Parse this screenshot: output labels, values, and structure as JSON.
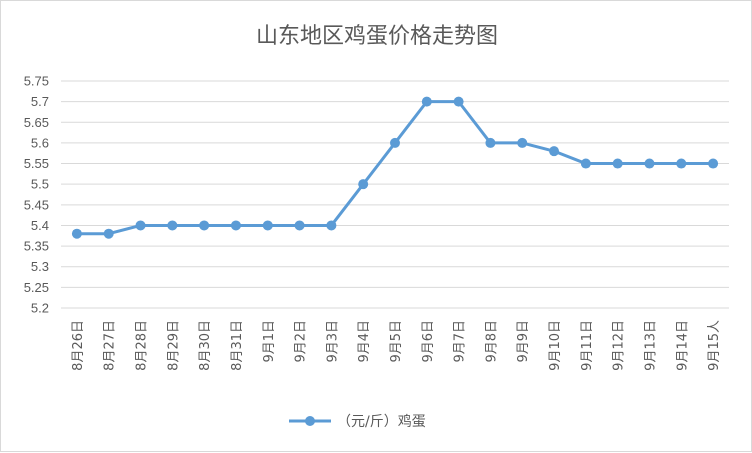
{
  "chart_data": {
    "type": "line",
    "title": "山东地区鸡蛋价格走势图",
    "categories": [
      "8月26日",
      "8月27日",
      "8月28日",
      "8月29日",
      "8月30日",
      "8月31日",
      "9月1日",
      "9月2日",
      "9月3日",
      "9月4日",
      "9月5日",
      "9月6日",
      "9月7日",
      "9月8日",
      "9月9日",
      "9月10日",
      "9月11日",
      "9月12日",
      "9月13日",
      "9月14日",
      "9月15人"
    ],
    "series": [
      {
        "name": "（元/斤）鸡蛋",
        "values": [
          5.38,
          5.38,
          5.4,
          5.4,
          5.4,
          5.4,
          5.4,
          5.4,
          5.4,
          5.5,
          5.6,
          5.7,
          5.7,
          5.6,
          5.6,
          5.58,
          5.55,
          5.55,
          5.55,
          5.55,
          5.55
        ]
      }
    ],
    "ylim": [
      5.2,
      5.75
    ],
    "yticks": [
      "5.2",
      "5.25",
      "5.3",
      "5.35",
      "5.4",
      "5.45",
      "5.5",
      "5.55",
      "5.6",
      "5.65",
      "5.7",
      "5.75"
    ],
    "grid": true,
    "legend_position": "bottom",
    "colors": {
      "series": "#5b9bd5",
      "grid": "#d9d9d9",
      "text": "#595959"
    }
  }
}
